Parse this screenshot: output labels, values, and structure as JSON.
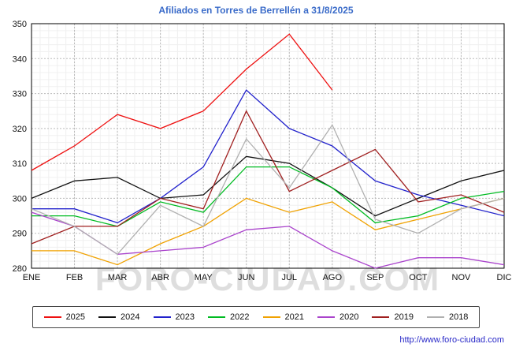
{
  "title": "Afiliados en Torres de Berrellén a 31/8/2025",
  "watermark": "FORO-CIUDAD.COM",
  "footer": {
    "url": "http://www.foro-ciudad.com"
  },
  "colors": {
    "title": "#3a6bc9",
    "grid_major": "#bbbbbb",
    "grid_minor": "#f0f0f0",
    "axis_border": "#000000",
    "watermark": "#d4d4d4"
  },
  "chart_data": {
    "type": "line",
    "title": "Afiliados en Torres de Berrellén a 31/8/2025",
    "xlabel": "",
    "ylabel": "",
    "categories": [
      "ENE",
      "FEB",
      "MAR",
      "ABR",
      "MAY",
      "JUN",
      "JUL",
      "AGO",
      "SEP",
      "OCT",
      "NOV",
      "DIC"
    ],
    "ylim": [
      280,
      350
    ],
    "ytick_step": 10,
    "grid": true,
    "legend_position": "bottom",
    "series": [
      {
        "name": "2025",
        "color": "#ee1111",
        "values": [
          308,
          315,
          324,
          320,
          325,
          337,
          347,
          331,
          null,
          null,
          null,
          null
        ]
      },
      {
        "name": "2024",
        "color": "#111111",
        "values": [
          300,
          305,
          306,
          300,
          301,
          312,
          310,
          303,
          295,
          300,
          305,
          308
        ]
      },
      {
        "name": "2023",
        "color": "#2222cc",
        "values": [
          297,
          297,
          293,
          300,
          309,
          331,
          320,
          315,
          305,
          301,
          298,
          295
        ]
      },
      {
        "name": "2022",
        "color": "#00bb22",
        "values": [
          295,
          295,
          292,
          299,
          296,
          309,
          309,
          303,
          293,
          295,
          300,
          302
        ]
      },
      {
        "name": "2021",
        "color": "#f0a202",
        "values": [
          285,
          285,
          281,
          287,
          292,
          300,
          296,
          299,
          291,
          294,
          297,
          300
        ]
      },
      {
        "name": "2020",
        "color": "#aa44cc",
        "values": [
          296,
          292,
          284,
          285,
          286,
          291,
          292,
          285,
          280,
          283,
          283,
          281
        ]
      },
      {
        "name": "2019",
        "color": "#a02020",
        "values": [
          287,
          292,
          292,
          300,
          297,
          325,
          302,
          308,
          314,
          299,
          301,
          296
        ]
      },
      {
        "name": "2018",
        "color": "#b0b0b0",
        "values": [
          297,
          292,
          284,
          298,
          292,
          317,
          303,
          321,
          294,
          290,
          297,
          300
        ]
      }
    ]
  }
}
